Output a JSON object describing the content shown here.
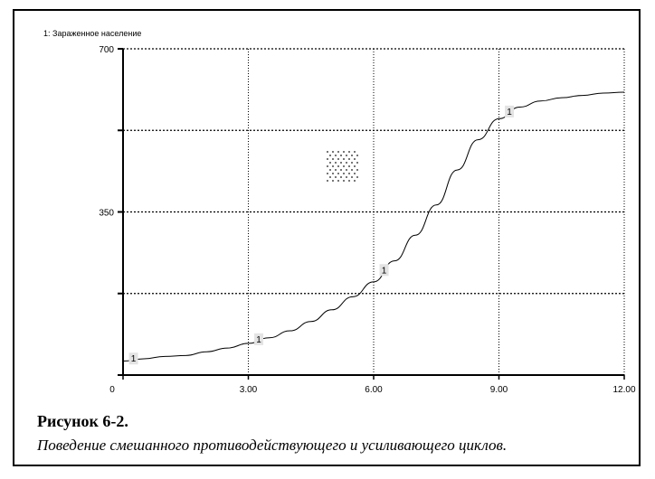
{
  "chart_data": {
    "type": "line",
    "series_label": "1: Зараженное население",
    "x_ticks": [
      "0",
      "3.00",
      "6.00",
      "9.00",
      "12.00"
    ],
    "y_ticks": [
      "700",
      "350"
    ],
    "xlim": [
      0,
      12
    ],
    "ylim": [
      0,
      700
    ],
    "grid": true,
    "series": [
      {
        "marker": "1",
        "x": [
          0.0,
          0.5,
          1.0,
          1.5,
          2.0,
          2.5,
          3.0,
          3.5,
          4.0,
          4.5,
          5.0,
          5.5,
          6.0,
          6.5,
          7.0,
          7.5,
          8.0,
          8.5,
          9.0,
          9.5,
          10.0,
          10.5,
          11.0,
          11.5,
          12.0
        ],
        "y": [
          30,
          35,
          40,
          42,
          50,
          58,
          68,
          80,
          95,
          115,
          140,
          168,
          200,
          245,
          300,
          365,
          440,
          505,
          550,
          575,
          588,
          595,
          600,
          605,
          607
        ],
        "marker_x": [
          0.25,
          3.25,
          6.25,
          9.25
        ]
      }
    ],
    "figure_caption_title": "Рисунок 6-2.",
    "figure_caption_text": "Поведение смешанного противодействующего и усиливающего циклов."
  }
}
